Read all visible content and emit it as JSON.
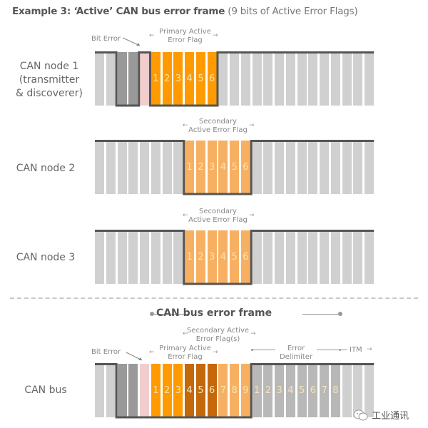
{
  "title": {
    "bold": "Example 3: ‘Active’ CAN bus error frame",
    "normal": " (9 bits of Active Error Flags)"
  },
  "colors": {
    "grey_light": "#d0d0d0",
    "grey_dark": "#999999",
    "grey_mid": "#b8b8b8",
    "pink": "#f2cdcd",
    "orange": "#ff9a00",
    "orange_light": "#f7b062",
    "orange_dark": "#c4680a",
    "signal_line": "#555555",
    "bit_number": "#f5e4b8"
  },
  "rows": [
    {
      "id": "node1",
      "label_lines": [
        "CAN node 1",
        "(transmitter",
        "& discoverer)"
      ],
      "annotations": [
        {
          "text": "Bit Error"
        },
        {
          "text_lines": [
            "Primary Active",
            "Error Flag"
          ]
        }
      ],
      "bits": [
        {
          "c": "grey_light"
        },
        {
          "c": "grey_light"
        },
        {
          "c": "grey_dark"
        },
        {
          "c": "grey_dark"
        },
        {
          "c": "pink"
        },
        {
          "c": "orange",
          "n": "1"
        },
        {
          "c": "orange",
          "n": "2"
        },
        {
          "c": "orange",
          "n": "3"
        },
        {
          "c": "orange",
          "n": "4"
        },
        {
          "c": "orange",
          "n": "5"
        },
        {
          "c": "orange",
          "n": "6"
        },
        {
          "c": "grey_light"
        },
        {
          "c": "grey_light"
        },
        {
          "c": "grey_light"
        },
        {
          "c": "grey_light"
        },
        {
          "c": "grey_light"
        },
        {
          "c": "grey_light"
        },
        {
          "c": "grey_light"
        },
        {
          "c": "grey_light"
        },
        {
          "c": "grey_light"
        },
        {
          "c": "grey_light"
        },
        {
          "c": "grey_light"
        },
        {
          "c": "grey_light"
        },
        {
          "c": "grey_light"
        },
        {
          "c": "grey_light"
        }
      ],
      "signal": [
        1,
        1,
        0,
        0,
        1,
        0,
        0,
        0,
        0,
        0,
        0,
        1,
        1,
        1,
        1,
        1,
        1,
        1,
        1,
        1,
        1,
        1,
        1,
        1,
        1
      ]
    },
    {
      "id": "node2",
      "label_lines": [
        "CAN node 2"
      ],
      "annotations": [
        {
          "text_lines": [
            "Secondary",
            "Active Error Flag"
          ]
        }
      ],
      "bits": [
        {
          "c": "grey_light"
        },
        {
          "c": "grey_light"
        },
        {
          "c": "grey_light"
        },
        {
          "c": "grey_light"
        },
        {
          "c": "grey_light"
        },
        {
          "c": "grey_light"
        },
        {
          "c": "grey_light"
        },
        {
          "c": "grey_light"
        },
        {
          "c": "orange_light",
          "n": "1"
        },
        {
          "c": "orange_light",
          "n": "2"
        },
        {
          "c": "orange_light",
          "n": "3"
        },
        {
          "c": "orange_light",
          "n": "4"
        },
        {
          "c": "orange_light",
          "n": "5"
        },
        {
          "c": "orange_light",
          "n": "6"
        },
        {
          "c": "grey_light"
        },
        {
          "c": "grey_light"
        },
        {
          "c": "grey_light"
        },
        {
          "c": "grey_light"
        },
        {
          "c": "grey_light"
        },
        {
          "c": "grey_light"
        },
        {
          "c": "grey_light"
        },
        {
          "c": "grey_light"
        },
        {
          "c": "grey_light"
        },
        {
          "c": "grey_light"
        },
        {
          "c": "grey_light"
        }
      ],
      "signal": [
        1,
        1,
        1,
        1,
        1,
        1,
        1,
        1,
        0,
        0,
        0,
        0,
        0,
        0,
        1,
        1,
        1,
        1,
        1,
        1,
        1,
        1,
        1,
        1,
        1
      ]
    },
    {
      "id": "node3",
      "label_lines": [
        "CAN node 3"
      ],
      "annotations": [
        {
          "text_lines": [
            "Secondary",
            "Active Error Flag"
          ]
        }
      ],
      "bits": [
        {
          "c": "grey_light"
        },
        {
          "c": "grey_light"
        },
        {
          "c": "grey_light"
        },
        {
          "c": "grey_light"
        },
        {
          "c": "grey_light"
        },
        {
          "c": "grey_light"
        },
        {
          "c": "grey_light"
        },
        {
          "c": "grey_light"
        },
        {
          "c": "orange_light",
          "n": "1"
        },
        {
          "c": "orange_light",
          "n": "2"
        },
        {
          "c": "orange_light",
          "n": "3"
        },
        {
          "c": "orange_light",
          "n": "4"
        },
        {
          "c": "orange_light",
          "n": "5"
        },
        {
          "c": "orange_light",
          "n": "6"
        },
        {
          "c": "grey_light"
        },
        {
          "c": "grey_light"
        },
        {
          "c": "grey_light"
        },
        {
          "c": "grey_light"
        },
        {
          "c": "grey_light"
        },
        {
          "c": "grey_light"
        },
        {
          "c": "grey_light"
        },
        {
          "c": "grey_light"
        },
        {
          "c": "grey_light"
        },
        {
          "c": "grey_light"
        },
        {
          "c": "grey_light"
        }
      ],
      "signal": [
        1,
        1,
        1,
        1,
        1,
        1,
        1,
        1,
        0,
        0,
        0,
        0,
        0,
        0,
        1,
        1,
        1,
        1,
        1,
        1,
        1,
        1,
        1,
        1,
        1
      ]
    },
    {
      "id": "bus",
      "label_lines": [
        "CAN bus"
      ],
      "annotations": [
        {
          "text": "Bit Error"
        },
        {
          "text_lines": [
            "Primary Active",
            "Error Flag"
          ]
        },
        {
          "text_lines": [
            "Secondary Active",
            "Error Flag(s)"
          ]
        },
        {
          "text_lines": [
            "Error",
            "Delimiter"
          ]
        },
        {
          "text": "ITM"
        }
      ],
      "bits": [
        {
          "c": "grey_light"
        },
        {
          "c": "grey_light"
        },
        {
          "c": "grey_dark"
        },
        {
          "c": "grey_dark"
        },
        {
          "c": "pink"
        },
        {
          "c": "orange",
          "n": "1"
        },
        {
          "c": "orange",
          "n": "2"
        },
        {
          "c": "orange",
          "n": "3"
        },
        {
          "c": "orange_dark",
          "n": "4"
        },
        {
          "c": "orange_dark",
          "n": "5"
        },
        {
          "c": "orange_dark",
          "n": "6"
        },
        {
          "c": "orange_light",
          "n": "7"
        },
        {
          "c": "orange_light",
          "n": "8"
        },
        {
          "c": "orange_light",
          "n": "9"
        },
        {
          "c": "grey_mid",
          "n": "1"
        },
        {
          "c": "grey_mid",
          "n": "2"
        },
        {
          "c": "grey_mid",
          "n": "3"
        },
        {
          "c": "grey_mid",
          "n": "4"
        },
        {
          "c": "grey_mid",
          "n": "5"
        },
        {
          "c": "grey_mid",
          "n": "6"
        },
        {
          "c": "grey_mid",
          "n": "7"
        },
        {
          "c": "grey_mid",
          "n": "8"
        },
        {
          "c": "grey_light"
        },
        {
          "c": "grey_light"
        },
        {
          "c": "grey_light"
        }
      ],
      "signal": [
        1,
        1,
        0,
        0,
        0,
        0,
        0,
        0,
        0,
        0,
        0,
        0,
        0,
        0,
        1,
        1,
        1,
        1,
        1,
        1,
        1,
        1,
        1,
        1,
        1
      ]
    }
  ],
  "section": {
    "title": "CAN bus error frame"
  },
  "watermark": {
    "icon": "wechat-icon",
    "text": "工业通讯"
  }
}
